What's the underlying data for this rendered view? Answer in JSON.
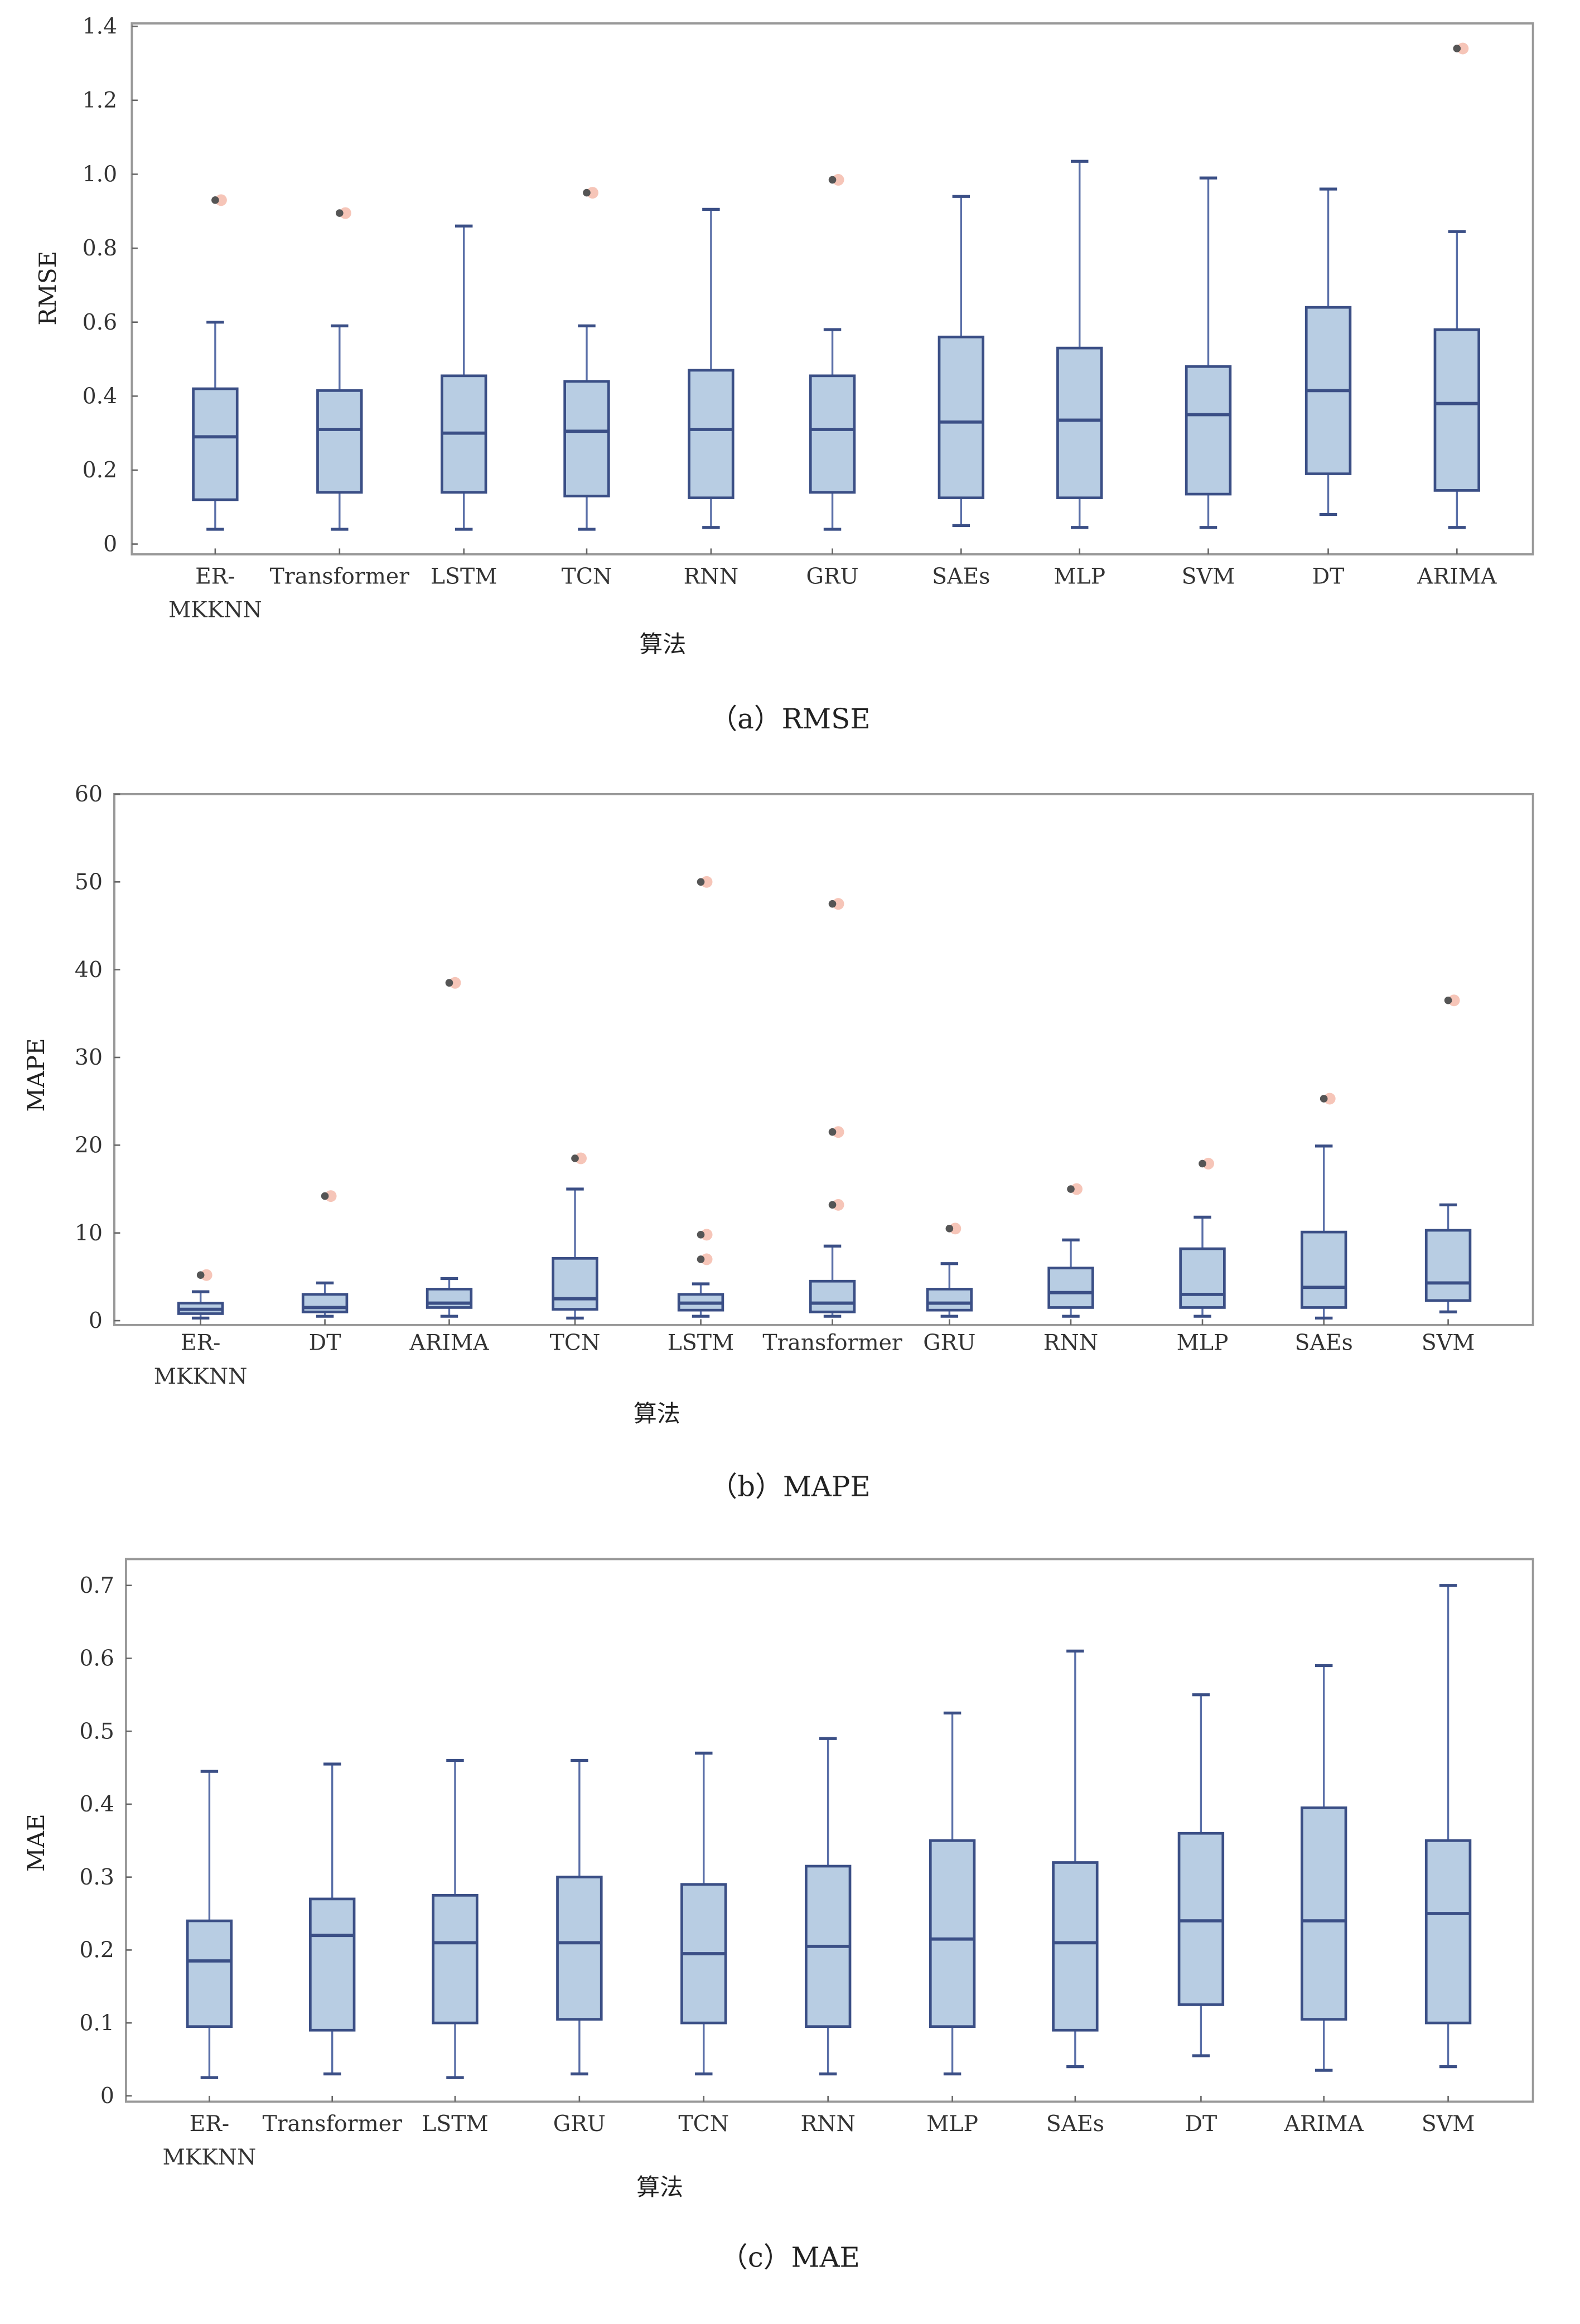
{
  "colors": {
    "box_fill": "#b8cde3",
    "box_stroke": "#3b4f86",
    "whisker": "#5a6fa8",
    "outlier": "#555555",
    "frame": "#999999"
  },
  "chart_data": [
    {
      "type": "box",
      "caption": "（a）RMSE",
      "xlabel": "算法",
      "ylabel": "RMSE",
      "ylim": [
        0,
        1.4
      ],
      "yticks": [
        "0",
        "0.2",
        "0.4",
        "0.6",
        "0.8",
        "1.0",
        "1.2",
        "1.4"
      ],
      "categories": [
        "ER-MKKNN",
        "Transformer",
        "LSTM",
        "TCN",
        "RNN",
        "GRU",
        "SAEs",
        "MLP",
        "SVM",
        "DT",
        "ARIMA"
      ],
      "boxes": [
        {
          "low": 0.04,
          "q1": 0.12,
          "median": 0.29,
          "q3": 0.42,
          "high": 0.6,
          "outliers": [
            0.93
          ]
        },
        {
          "low": 0.04,
          "q1": 0.14,
          "median": 0.31,
          "q3": 0.415,
          "high": 0.59,
          "outliers": [
            0.895
          ]
        },
        {
          "low": 0.04,
          "q1": 0.14,
          "median": 0.3,
          "q3": 0.455,
          "high": 0.86,
          "outliers": []
        },
        {
          "low": 0.04,
          "q1": 0.13,
          "median": 0.305,
          "q3": 0.44,
          "high": 0.59,
          "outliers": [
            0.95
          ]
        },
        {
          "low": 0.045,
          "q1": 0.125,
          "median": 0.31,
          "q3": 0.47,
          "high": 0.905,
          "outliers": []
        },
        {
          "low": 0.04,
          "q1": 0.14,
          "median": 0.31,
          "q3": 0.455,
          "high": 0.58,
          "outliers": [
            0.985
          ]
        },
        {
          "low": 0.05,
          "q1": 0.125,
          "median": 0.33,
          "q3": 0.56,
          "high": 0.94,
          "outliers": []
        },
        {
          "low": 0.045,
          "q1": 0.125,
          "median": 0.335,
          "q3": 0.53,
          "high": 1.035,
          "outliers": []
        },
        {
          "low": 0.045,
          "q1": 0.135,
          "median": 0.35,
          "q3": 0.48,
          "high": 0.99,
          "outliers": []
        },
        {
          "low": 0.08,
          "q1": 0.19,
          "median": 0.415,
          "q3": 0.64,
          "high": 0.96,
          "outliers": []
        },
        {
          "low": 0.045,
          "q1": 0.145,
          "median": 0.38,
          "q3": 0.58,
          "high": 0.845,
          "outliers": [
            1.34
          ]
        }
      ]
    },
    {
      "type": "box",
      "caption": "（b）MAPE",
      "xlabel": "算法",
      "ylabel": "MAPE",
      "ylim": [
        0,
        60
      ],
      "yticks": [
        "0",
        "10",
        "20",
        "30",
        "40",
        "50",
        "60"
      ],
      "categories": [
        "ER-MKKNN",
        "DT",
        "ARIMA",
        "TCN",
        "LSTM",
        "Transformer",
        "GRU",
        "RNN",
        "MLP",
        "SAEs",
        "SVM"
      ],
      "boxes": [
        {
          "low": 0.3,
          "q1": 0.8,
          "median": 1.3,
          "q3": 2.0,
          "high": 3.3,
          "outliers": [
            5.2
          ]
        },
        {
          "low": 0.5,
          "q1": 1.0,
          "median": 1.5,
          "q3": 3.0,
          "high": 4.3,
          "outliers": [
            14.2
          ]
        },
        {
          "low": 0.5,
          "q1": 1.5,
          "median": 2.0,
          "q3": 3.6,
          "high": 4.8,
          "outliers": [
            38.5
          ]
        },
        {
          "low": 0.3,
          "q1": 1.3,
          "median": 2.5,
          "q3": 7.1,
          "high": 15.0,
          "outliers": [
            18.5
          ]
        },
        {
          "low": 0.5,
          "q1": 1.2,
          "median": 2.0,
          "q3": 3.0,
          "high": 4.2,
          "outliers": [
            7.0,
            9.8,
            50.0
          ]
        },
        {
          "low": 0.5,
          "q1": 1.0,
          "median": 2.0,
          "q3": 4.5,
          "high": 8.5,
          "outliers": [
            13.2,
            21.5,
            47.5
          ]
        },
        {
          "low": 0.5,
          "q1": 1.2,
          "median": 2.0,
          "q3": 3.6,
          "high": 6.5,
          "outliers": [
            10.5
          ]
        },
        {
          "low": 0.5,
          "q1": 1.5,
          "median": 3.2,
          "q3": 6.0,
          "high": 9.2,
          "outliers": [
            15.0
          ]
        },
        {
          "low": 0.5,
          "q1": 1.5,
          "median": 3.0,
          "q3": 8.2,
          "high": 11.8,
          "outliers": [
            17.9
          ]
        },
        {
          "low": 0.3,
          "q1": 1.5,
          "median": 3.8,
          "q3": 10.1,
          "high": 19.9,
          "outliers": [
            25.3
          ]
        },
        {
          "low": 1.0,
          "q1": 2.3,
          "median": 4.3,
          "q3": 10.3,
          "high": 13.2,
          "outliers": [
            36.5
          ]
        }
      ]
    },
    {
      "type": "box",
      "caption": "（c）MAE",
      "xlabel": "算法",
      "ylabel": "MAE",
      "ylim": [
        0,
        0.7
      ],
      "yticks": [
        "0",
        "0.1",
        "0.2",
        "0.3",
        "0.4",
        "0.5",
        "0.6",
        "0.7"
      ],
      "categories": [
        "ER-MKKNN",
        "Transformer",
        "LSTM",
        "GRU",
        "TCN",
        "RNN",
        "MLP",
        "SAEs",
        "DT",
        "ARIMA",
        "SVM"
      ],
      "boxes": [
        {
          "low": 0.025,
          "q1": 0.095,
          "median": 0.185,
          "q3": 0.24,
          "high": 0.445,
          "outliers": []
        },
        {
          "low": 0.03,
          "q1": 0.09,
          "median": 0.22,
          "q3": 0.27,
          "high": 0.455,
          "outliers": []
        },
        {
          "low": 0.025,
          "q1": 0.1,
          "median": 0.21,
          "q3": 0.275,
          "high": 0.46,
          "outliers": []
        },
        {
          "low": 0.03,
          "q1": 0.105,
          "median": 0.21,
          "q3": 0.3,
          "high": 0.46,
          "outliers": []
        },
        {
          "low": 0.03,
          "q1": 0.1,
          "median": 0.195,
          "q3": 0.29,
          "high": 0.47,
          "outliers": []
        },
        {
          "low": 0.03,
          "q1": 0.095,
          "median": 0.205,
          "q3": 0.315,
          "high": 0.49,
          "outliers": []
        },
        {
          "low": 0.03,
          "q1": 0.095,
          "median": 0.215,
          "q3": 0.35,
          "high": 0.525,
          "outliers": []
        },
        {
          "low": 0.04,
          "q1": 0.09,
          "median": 0.21,
          "q3": 0.32,
          "high": 0.61,
          "outliers": []
        },
        {
          "low": 0.055,
          "q1": 0.125,
          "median": 0.24,
          "q3": 0.36,
          "high": 0.55,
          "outliers": []
        },
        {
          "low": 0.035,
          "q1": 0.105,
          "median": 0.24,
          "q3": 0.395,
          "high": 0.59,
          "outliers": []
        },
        {
          "low": 0.04,
          "q1": 0.1,
          "median": 0.25,
          "q3": 0.35,
          "high": 0.7,
          "outliers": []
        }
      ]
    }
  ]
}
